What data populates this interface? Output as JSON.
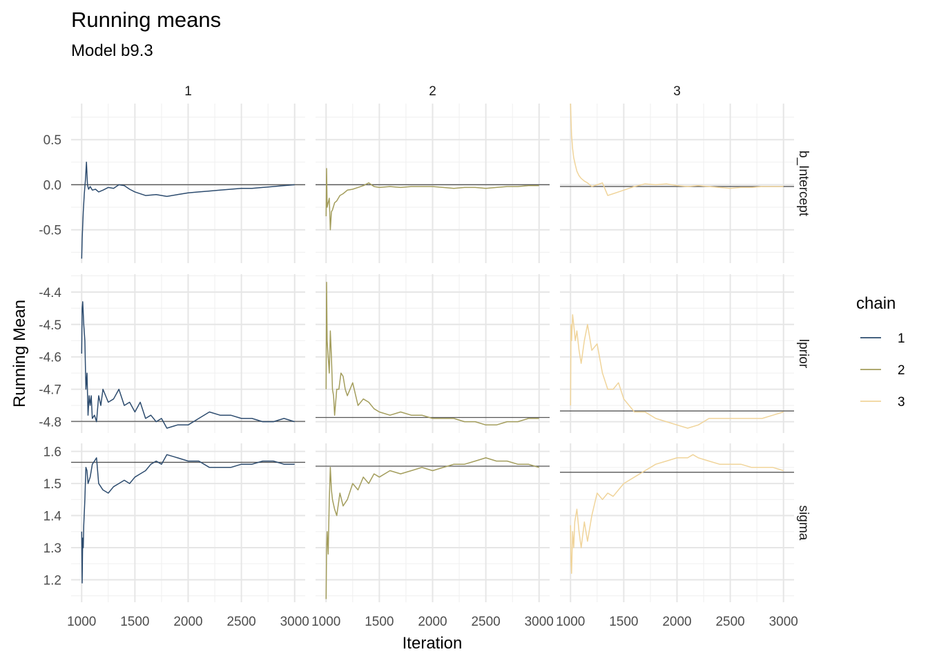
{
  "title": "Running means",
  "subtitle": "Model b9.3",
  "chart_data": {
    "type": "line",
    "xlabel": "Iteration",
    "ylabel": "Running Mean",
    "xlim": [
      1000,
      3000
    ],
    "xticks": [
      1000,
      1500,
      2000,
      2500,
      3000
    ],
    "xtick_labels": [
      "1000",
      "1500",
      "2000",
      "2500",
      "3000"
    ],
    "grid": true,
    "legend": {
      "title": "chain",
      "position": "right",
      "entries": [
        {
          "label": "1",
          "color": "#2c4b6e"
        },
        {
          "label": "2",
          "color": "#a39d5c"
        },
        {
          "label": "3",
          "color": "#f0d49a"
        }
      ]
    },
    "facet_cols": [
      "1",
      "2",
      "3"
    ],
    "facet_rows": [
      {
        "label": "b_Intercept",
        "ylim": [
          -0.87,
          0.9
        ],
        "yticks": [
          -0.5,
          0.0,
          0.5
        ],
        "ytick_labels": [
          "-0.5",
          "0.0",
          "0.5"
        ]
      },
      {
        "label": "lprior",
        "ylim": [
          -4.835,
          -4.345
        ],
        "yticks": [
          -4.8,
          -4.7,
          -4.6,
          -4.5,
          -4.4
        ],
        "ytick_labels": [
          "-4.8",
          "-4.7",
          "-4.6",
          "-4.5",
          "-4.4"
        ]
      },
      {
        "label": "sigma",
        "ylim": [
          1.13,
          1.625
        ],
        "yticks": [
          1.2,
          1.3,
          1.4,
          1.5,
          1.6
        ],
        "ytick_labels": [
          "1.2",
          "1.3",
          "1.4",
          "1.5",
          "1.6"
        ]
      }
    ],
    "reference_lines": [
      [
        0.0,
        0.0,
        -0.02
      ],
      [
        -4.799,
        -4.787,
        -4.767
      ],
      [
        1.566,
        1.554,
        1.535
      ]
    ],
    "series": [
      {
        "name": "1",
        "param": "b_Intercept",
        "x": [
          1000,
          1005,
          1010,
          1015,
          1025,
          1035,
          1045,
          1055,
          1065,
          1080,
          1100,
          1130,
          1160,
          1200,
          1250,
          1300,
          1350,
          1400,
          1450,
          1500,
          1600,
          1700,
          1800,
          1900,
          2000,
          2100,
          2200,
          2300,
          2400,
          2500,
          2600,
          2700,
          2800,
          2900,
          3000
        ],
        "y": [
          -0.82,
          -0.6,
          -0.45,
          -0.3,
          -0.1,
          0.05,
          0.25,
          0.0,
          -0.05,
          -0.02,
          -0.06,
          -0.05,
          -0.08,
          -0.06,
          -0.03,
          -0.04,
          0.0,
          -0.01,
          -0.05,
          -0.08,
          -0.12,
          -0.11,
          -0.13,
          -0.11,
          -0.09,
          -0.08,
          -0.07,
          -0.06,
          -0.05,
          -0.04,
          -0.04,
          -0.03,
          -0.02,
          -0.01,
          0.0
        ]
      },
      {
        "name": "2",
        "param": "b_Intercept",
        "x": [
          1000,
          1005,
          1010,
          1020,
          1030,
          1040,
          1050,
          1060,
          1080,
          1100,
          1130,
          1160,
          1200,
          1250,
          1300,
          1350,
          1400,
          1450,
          1500,
          1600,
          1700,
          1800,
          1900,
          2000,
          2100,
          2200,
          2300,
          2400,
          2500,
          2600,
          2700,
          2800,
          2900,
          3000
        ],
        "y": [
          -0.35,
          0.18,
          -0.25,
          -0.2,
          -0.15,
          -0.5,
          -0.3,
          -0.28,
          -0.2,
          -0.18,
          -0.12,
          -0.1,
          -0.06,
          -0.05,
          -0.03,
          -0.01,
          0.02,
          -0.02,
          -0.03,
          -0.02,
          -0.03,
          -0.02,
          -0.02,
          -0.02,
          -0.03,
          -0.04,
          -0.03,
          -0.03,
          -0.04,
          -0.03,
          -0.02,
          -0.02,
          -0.01,
          -0.01
        ]
      },
      {
        "name": "3",
        "param": "b_Intercept",
        "x": [
          1000,
          1005,
          1010,
          1020,
          1030,
          1045,
          1060,
          1080,
          1100,
          1130,
          1160,
          1200,
          1250,
          1300,
          1350,
          1400,
          1450,
          1500,
          1600,
          1700,
          1800,
          1900,
          2000,
          2100,
          2200,
          2300,
          2400,
          2500,
          2600,
          2700,
          2800,
          2900,
          3000
        ],
        "y": [
          0.9,
          0.72,
          0.55,
          0.4,
          0.3,
          0.22,
          0.15,
          0.1,
          0.07,
          0.04,
          0.02,
          -0.02,
          0.0,
          0.02,
          -0.12,
          -0.1,
          -0.08,
          -0.06,
          -0.02,
          0.01,
          0.0,
          0.01,
          -0.01,
          -0.02,
          -0.01,
          -0.02,
          -0.03,
          -0.04,
          -0.03,
          -0.03,
          -0.02,
          -0.02,
          -0.02
        ]
      },
      {
        "name": "1",
        "param": "lprior",
        "x": [
          1000,
          1005,
          1010,
          1020,
          1030,
          1040,
          1050,
          1060,
          1070,
          1080,
          1090,
          1100,
          1120,
          1140,
          1160,
          1180,
          1200,
          1250,
          1300,
          1350,
          1400,
          1450,
          1500,
          1550,
          1600,
          1650,
          1700,
          1750,
          1800,
          1900,
          2000,
          2100,
          2200,
          2300,
          2400,
          2500,
          2600,
          2700,
          2800,
          2900,
          3000
        ],
        "y": [
          -4.59,
          -4.45,
          -4.43,
          -4.5,
          -4.55,
          -4.7,
          -4.65,
          -4.78,
          -4.72,
          -4.75,
          -4.72,
          -4.79,
          -4.78,
          -4.8,
          -4.72,
          -4.75,
          -4.7,
          -4.74,
          -4.73,
          -4.7,
          -4.75,
          -4.74,
          -4.77,
          -4.74,
          -4.79,
          -4.78,
          -4.8,
          -4.79,
          -4.82,
          -4.81,
          -4.81,
          -4.79,
          -4.77,
          -4.78,
          -4.78,
          -4.79,
          -4.79,
          -4.8,
          -4.8,
          -4.79,
          -4.8
        ]
      },
      {
        "name": "2",
        "param": "lprior",
        "x": [
          1000,
          1005,
          1010,
          1020,
          1030,
          1040,
          1050,
          1060,
          1070,
          1080,
          1100,
          1120,
          1140,
          1160,
          1180,
          1200,
          1250,
          1300,
          1350,
          1400,
          1450,
          1500,
          1600,
          1700,
          1800,
          1900,
          2000,
          2100,
          2200,
          2300,
          2400,
          2500,
          2600,
          2700,
          2800,
          2900,
          3000
        ],
        "y": [
          -4.7,
          -4.37,
          -4.55,
          -4.6,
          -4.65,
          -4.52,
          -4.6,
          -4.7,
          -4.72,
          -4.78,
          -4.7,
          -4.7,
          -4.65,
          -4.66,
          -4.7,
          -4.72,
          -4.68,
          -4.75,
          -4.73,
          -4.74,
          -4.76,
          -4.77,
          -4.78,
          -4.77,
          -4.78,
          -4.78,
          -4.79,
          -4.79,
          -4.79,
          -4.8,
          -4.8,
          -4.81,
          -4.81,
          -4.8,
          -4.8,
          -4.79,
          -4.79
        ]
      },
      {
        "name": "3",
        "param": "lprior",
        "x": [
          1000,
          1005,
          1010,
          1020,
          1030,
          1045,
          1060,
          1080,
          1100,
          1130,
          1160,
          1200,
          1250,
          1300,
          1350,
          1400,
          1450,
          1500,
          1600,
          1700,
          1800,
          1900,
          2000,
          2100,
          2200,
          2300,
          2400,
          2500,
          2600,
          2700,
          2800,
          2900,
          3000
        ],
        "y": [
          -4.75,
          -4.5,
          -4.55,
          -4.47,
          -4.5,
          -4.55,
          -4.52,
          -4.58,
          -4.62,
          -4.55,
          -4.5,
          -4.58,
          -4.56,
          -4.65,
          -4.7,
          -4.7,
          -4.68,
          -4.73,
          -4.77,
          -4.77,
          -4.79,
          -4.8,
          -4.81,
          -4.82,
          -4.81,
          -4.79,
          -4.79,
          -4.79,
          -4.79,
          -4.79,
          -4.79,
          -4.78,
          -4.77
        ]
      },
      {
        "name": "1",
        "param": "sigma",
        "x": [
          1000,
          1005,
          1010,
          1015,
          1020,
          1030,
          1040,
          1050,
          1060,
          1080,
          1100,
          1120,
          1140,
          1160,
          1200,
          1250,
          1300,
          1350,
          1400,
          1450,
          1500,
          1550,
          1600,
          1650,
          1700,
          1750,
          1800,
          1900,
          2000,
          2100,
          2200,
          2300,
          2400,
          2500,
          2600,
          2700,
          2800,
          2900,
          3000
        ],
        "y": [
          1.35,
          1.19,
          1.33,
          1.3,
          1.37,
          1.45,
          1.55,
          1.54,
          1.5,
          1.52,
          1.56,
          1.57,
          1.58,
          1.5,
          1.48,
          1.47,
          1.49,
          1.5,
          1.51,
          1.5,
          1.52,
          1.53,
          1.54,
          1.56,
          1.57,
          1.56,
          1.59,
          1.58,
          1.57,
          1.57,
          1.55,
          1.55,
          1.55,
          1.56,
          1.56,
          1.57,
          1.57,
          1.56,
          1.56
        ]
      },
      {
        "name": "2",
        "param": "sigma",
        "x": [
          1000,
          1005,
          1010,
          1020,
          1030,
          1040,
          1050,
          1060,
          1080,
          1100,
          1130,
          1160,
          1200,
          1250,
          1300,
          1350,
          1400,
          1450,
          1500,
          1600,
          1700,
          1800,
          1900,
          2000,
          2100,
          2200,
          2300,
          2400,
          2500,
          2600,
          2700,
          2800,
          2900,
          3000
        ],
        "y": [
          1.14,
          1.3,
          1.35,
          1.28,
          1.45,
          1.55,
          1.48,
          1.45,
          1.42,
          1.4,
          1.47,
          1.43,
          1.45,
          1.5,
          1.48,
          1.52,
          1.5,
          1.53,
          1.52,
          1.54,
          1.53,
          1.54,
          1.55,
          1.54,
          1.55,
          1.56,
          1.56,
          1.57,
          1.58,
          1.57,
          1.57,
          1.56,
          1.56,
          1.55
        ]
      },
      {
        "name": "3",
        "param": "sigma",
        "x": [
          1000,
          1005,
          1010,
          1020,
          1030,
          1040,
          1060,
          1080,
          1100,
          1130,
          1160,
          1200,
          1250,
          1300,
          1350,
          1400,
          1450,
          1500,
          1600,
          1700,
          1800,
          1900,
          2000,
          2100,
          2150,
          2200,
          2300,
          2400,
          2500,
          2600,
          2700,
          2800,
          2900,
          3000
        ],
        "y": [
          1.37,
          1.25,
          1.22,
          1.35,
          1.3,
          1.38,
          1.42,
          1.35,
          1.3,
          1.38,
          1.32,
          1.4,
          1.47,
          1.45,
          1.47,
          1.46,
          1.48,
          1.5,
          1.52,
          1.54,
          1.56,
          1.57,
          1.58,
          1.58,
          1.59,
          1.58,
          1.57,
          1.56,
          1.56,
          1.56,
          1.55,
          1.55,
          1.55,
          1.54
        ]
      }
    ]
  }
}
